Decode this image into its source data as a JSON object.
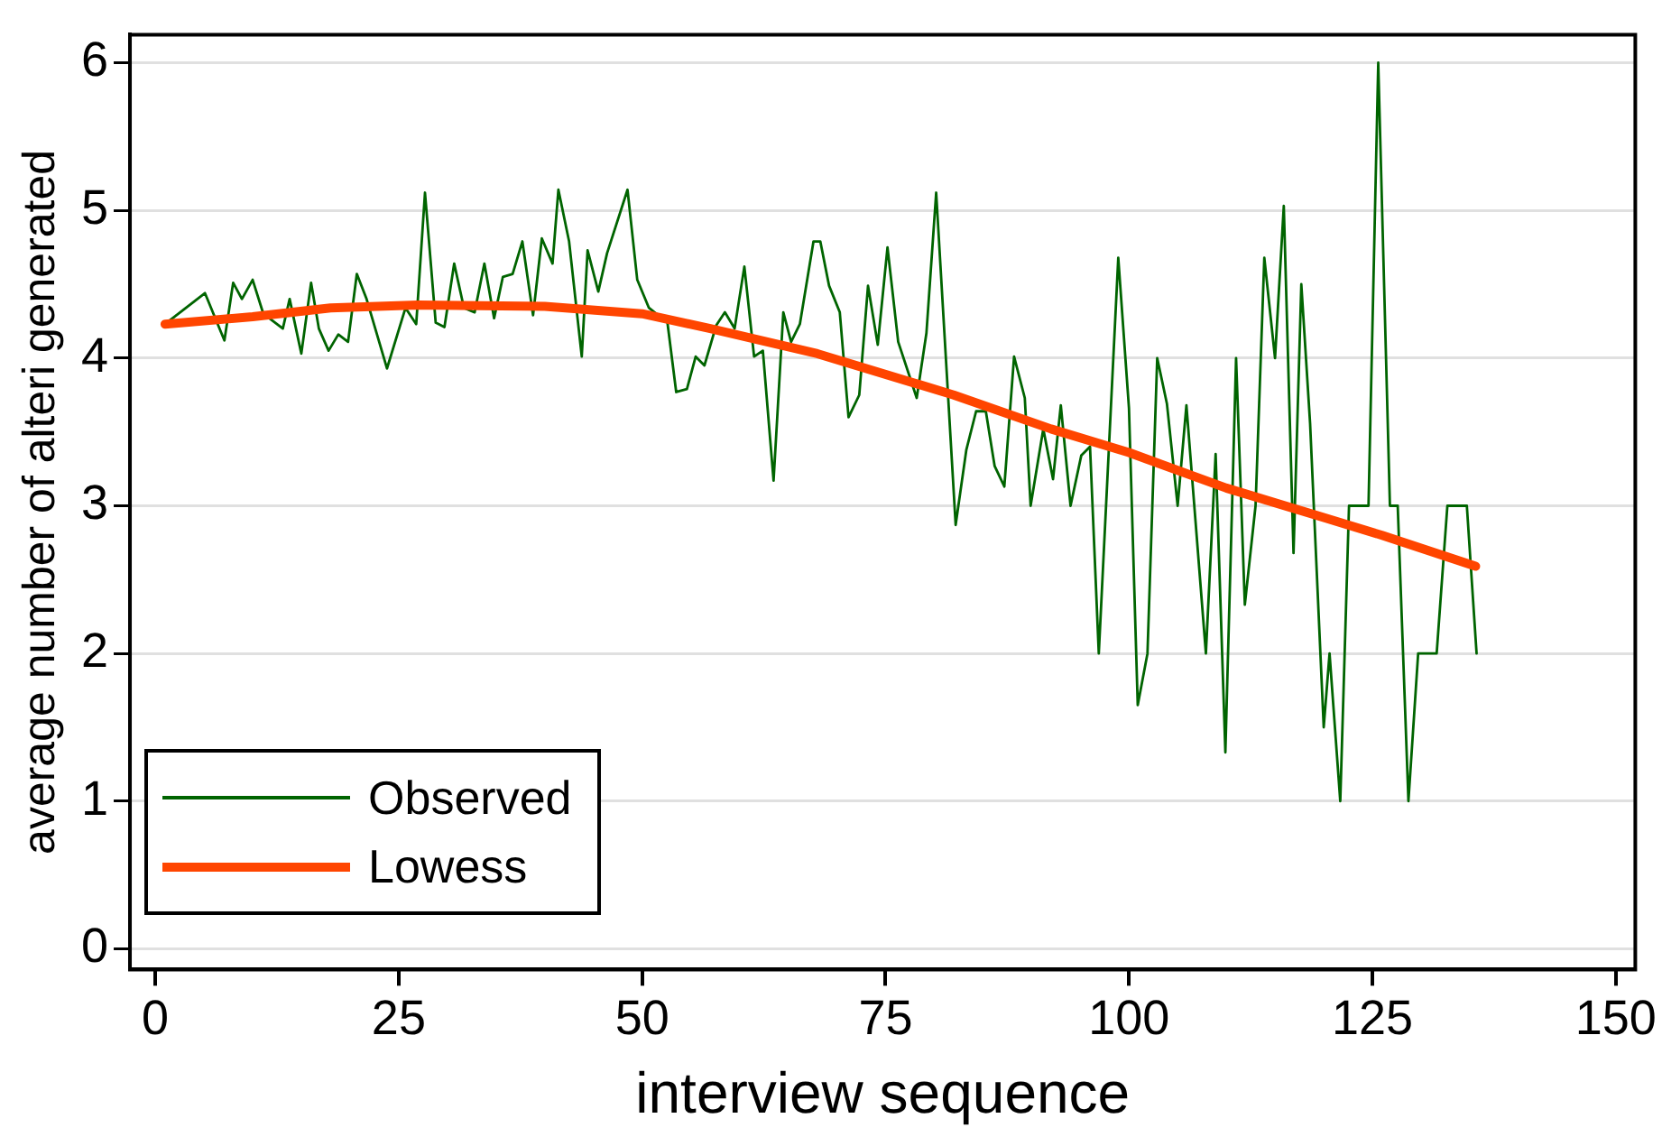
{
  "chart_data": {
    "type": "line",
    "xlabel": "interview sequence",
    "ylabel": "average number of alteri generated",
    "xlim": [
      -2.6,
      152
    ],
    "xticks": [
      0,
      25,
      50,
      75,
      100,
      125,
      150
    ],
    "ylim": [
      -0.14,
      6.19
    ],
    "yticks": [
      0,
      1,
      2,
      3,
      4,
      5,
      6
    ],
    "grid": "y",
    "legend": "bottom left",
    "marker": "none",
    "series": [
      {
        "name": "Observed",
        "color": "#006400",
        "x": [
          1,
          5.1,
          7.1,
          8,
          8.9,
          10,
          11.1,
          13.1,
          13.8,
          15,
          16,
          16.8,
          17.8,
          18.8,
          19.8,
          20.7,
          21.7,
          23.8,
          25.7,
          26.8,
          27.7,
          28.8,
          29.7,
          30.7,
          31.7,
          32.8,
          33.8,
          34.8,
          35.7,
          36.7,
          37.7,
          38.8,
          39.7,
          40.8,
          41.4,
          42.5,
          43.8,
          44.4,
          45.5,
          46.4,
          48.5,
          49.5,
          50.7,
          52.6,
          53.5,
          54.6,
          55.5,
          56.4,
          57.6,
          58.5,
          59.5,
          60.5,
          61.5,
          62.4,
          63.5,
          64.5,
          65.3,
          66.2,
          67.6,
          68.3,
          69.2,
          70.3,
          71.2,
          72.3,
          73.2,
          74.2,
          75.2,
          76.3,
          78.2,
          79.2,
          80.2,
          82.2,
          83.3,
          84.3,
          85.3,
          86.2,
          87.2,
          88.2,
          89.3,
          89.9,
          91.2,
          92.2,
          93,
          94,
          95.1,
          96,
          96.9,
          98.9,
          100,
          100.9,
          101.9,
          102.9,
          103.9,
          105,
          105.9,
          107.9,
          108.9,
          109.9,
          111,
          111.9,
          113,
          113.9,
          115,
          115.9,
          116.9,
          117.7,
          118.6,
          120,
          120.6,
          121.7,
          122.6,
          124.6,
          125.6,
          126.8,
          127.6,
          128.7,
          129.7,
          131.6,
          132.7,
          134.7,
          135.7
        ],
        "values": [
          4.23,
          4.44,
          4.12,
          4.51,
          4.4,
          4.53,
          4.3,
          4.2,
          4.4,
          4.03,
          4.51,
          4.2,
          4.05,
          4.16,
          4.11,
          4.57,
          4.4,
          3.93,
          4.34,
          4.23,
          5.12,
          4.24,
          4.21,
          4.64,
          4.34,
          4.31,
          4.64,
          4.27,
          4.55,
          4.57,
          4.79,
          4.29,
          4.81,
          4.64,
          5.14,
          4.79,
          4.01,
          4.73,
          4.45,
          4.71,
          5.14,
          4.53,
          4.34,
          4.24,
          3.77,
          3.79,
          4.01,
          3.95,
          4.22,
          4.31,
          4.2,
          4.62,
          4.01,
          4.05,
          3.17,
          4.31,
          4.11,
          4.23,
          4.79,
          4.79,
          4.49,
          4.31,
          3.6,
          3.75,
          4.49,
          4.09,
          4.75,
          4.11,
          3.73,
          4.17,
          5.12,
          2.87,
          3.38,
          3.64,
          3.64,
          3.27,
          3.13,
          4.01,
          3.73,
          3,
          3.52,
          3.18,
          3.68,
          3,
          3.34,
          3.4,
          2,
          4.68,
          3.66,
          1.65,
          2,
          4,
          3.69,
          3,
          3.68,
          2,
          3.35,
          1.33,
          4,
          2.33,
          3,
          4.68,
          4,
          5.03,
          2.68,
          4.5,
          3.56,
          1.5,
          2,
          1,
          3,
          3,
          6,
          3,
          3,
          1,
          2,
          2,
          3,
          3,
          2
        ]
      },
      {
        "name": "Lowess",
        "color": "#ff4500",
        "x": [
          1,
          10,
          18,
          27,
          40,
          50,
          57,
          68,
          82,
          92,
          100,
          110,
          120,
          126,
          135.6
        ],
        "values": [
          4.23,
          4.28,
          4.34,
          4.36,
          4.35,
          4.3,
          4.2,
          4.03,
          3.75,
          3.52,
          3.36,
          3.12,
          2.92,
          2.8,
          2.59
        ]
      }
    ]
  }
}
